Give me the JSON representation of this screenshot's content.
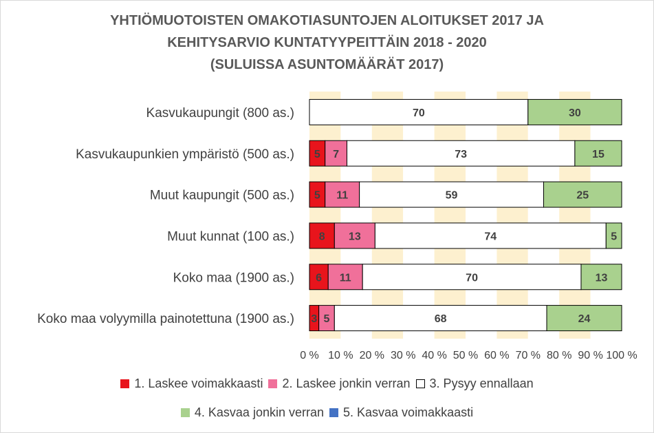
{
  "chart_data": {
    "type": "bar",
    "orientation": "horizontal-stacked-100",
    "title": [
      "YHTIÖMUOTOISTEN OMAKOTIASUNTOJEN ALOITUKSET 2017 JA",
      "KEHITYSARVIO KUNTATYYPEITTÄIN 2018 - 2020",
      "(SULUISSA ASUNTOMÄÄRÄT 2017)"
    ],
    "categories": [
      "Kasvukaupungit (800 as.)",
      "Kasvukaupunkien ympäristö (500 as.)",
      "Muut kaupungit (500 as.)",
      "Muut kunnat (100 as.)",
      "Koko maa (1900 as.)",
      "Koko maa volyymilla painotettuna (1900 as.)"
    ],
    "series": [
      {
        "name": "1. Laskee voimakkaasti",
        "color": "#e8141c",
        "values": [
          0,
          5,
          5,
          8,
          6,
          3
        ]
      },
      {
        "name": "2. Laskee jonkin verran",
        "color": "#f0709a",
        "values": [
          0,
          7,
          11,
          13,
          11,
          5
        ]
      },
      {
        "name": "3. Pysyy ennallaan",
        "color": "#ffffff",
        "values": [
          70,
          73,
          59,
          74,
          70,
          68
        ]
      },
      {
        "name": "4. Kasvaa jonkin verran",
        "color": "#a9d18e",
        "values": [
          30,
          15,
          25,
          5,
          13,
          24
        ]
      },
      {
        "name": "5. Kasvaa voimakkaasti",
        "color": "#4472c4",
        "values": [
          0,
          0,
          0,
          0,
          0,
          0
        ]
      }
    ],
    "xlim": [
      0,
      100
    ],
    "x_ticks": [
      "0 %",
      "10 %",
      "20 %",
      "30 %",
      "40 %",
      "50 %",
      "60 %",
      "70 %",
      "80 %",
      "90 %",
      "100 %"
    ],
    "band_colors": [
      "#fdf0cf",
      "#ffffff"
    ],
    "grid": true,
    "legend_position": "bottom"
  }
}
